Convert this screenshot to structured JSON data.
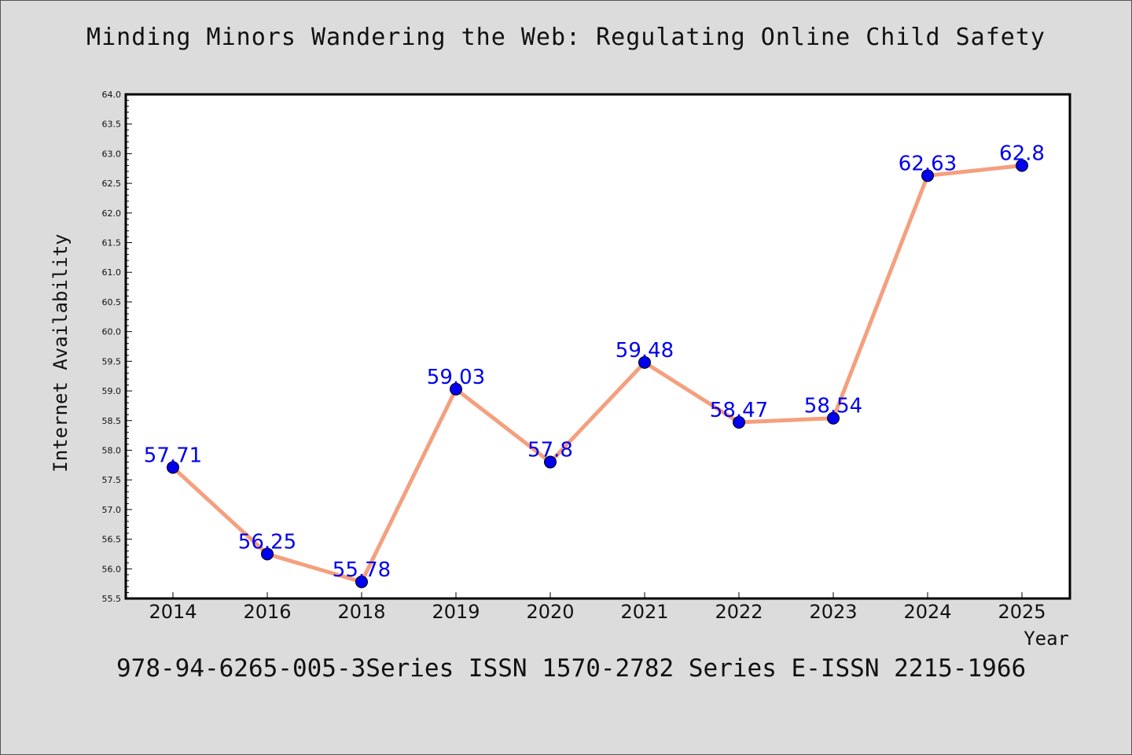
{
  "page": {
    "title": "Minding Minors Wandering the Web: Regulating Online Child Safety",
    "footer": "978-94-6265-005-3Series ISSN 1570-2782 Series E-ISSN 2215-1966"
  },
  "chart_data": {
    "type": "line",
    "title": "Minding Minors Wandering the Web: Regulating Online Child Safety",
    "xlabel": "Year",
    "ylabel": "Internet Availability",
    "categories": [
      "2014",
      "2016",
      "2018",
      "2019",
      "2020",
      "2021",
      "2022",
      "2023",
      "2024",
      "2025"
    ],
    "values": [
      57.71,
      56.25,
      55.78,
      59.03,
      57.8,
      59.48,
      58.47,
      58.54,
      62.63,
      62.8
    ],
    "data_labels": [
      "57.71",
      "56.25",
      "55.78",
      "59.03",
      "57.8",
      "59.48",
      "58.47",
      "58.54",
      "62.63",
      "62.8"
    ],
    "ylim": [
      55.5,
      64.0
    ],
    "yticks": [
      "55.5",
      "56.0",
      "56.5",
      "57.0",
      "57.5",
      "58.0",
      "58.5",
      "59.0",
      "59.5",
      "60.0",
      "60.5",
      "61.0",
      "61.5",
      "62.0",
      "62.5",
      "63.0",
      "63.5",
      "64.0"
    ],
    "grid": false,
    "colors": {
      "line": "#f4a07e",
      "marker": "#0000ee",
      "label": "#0000ee",
      "background": "#dcdcdc"
    }
  }
}
